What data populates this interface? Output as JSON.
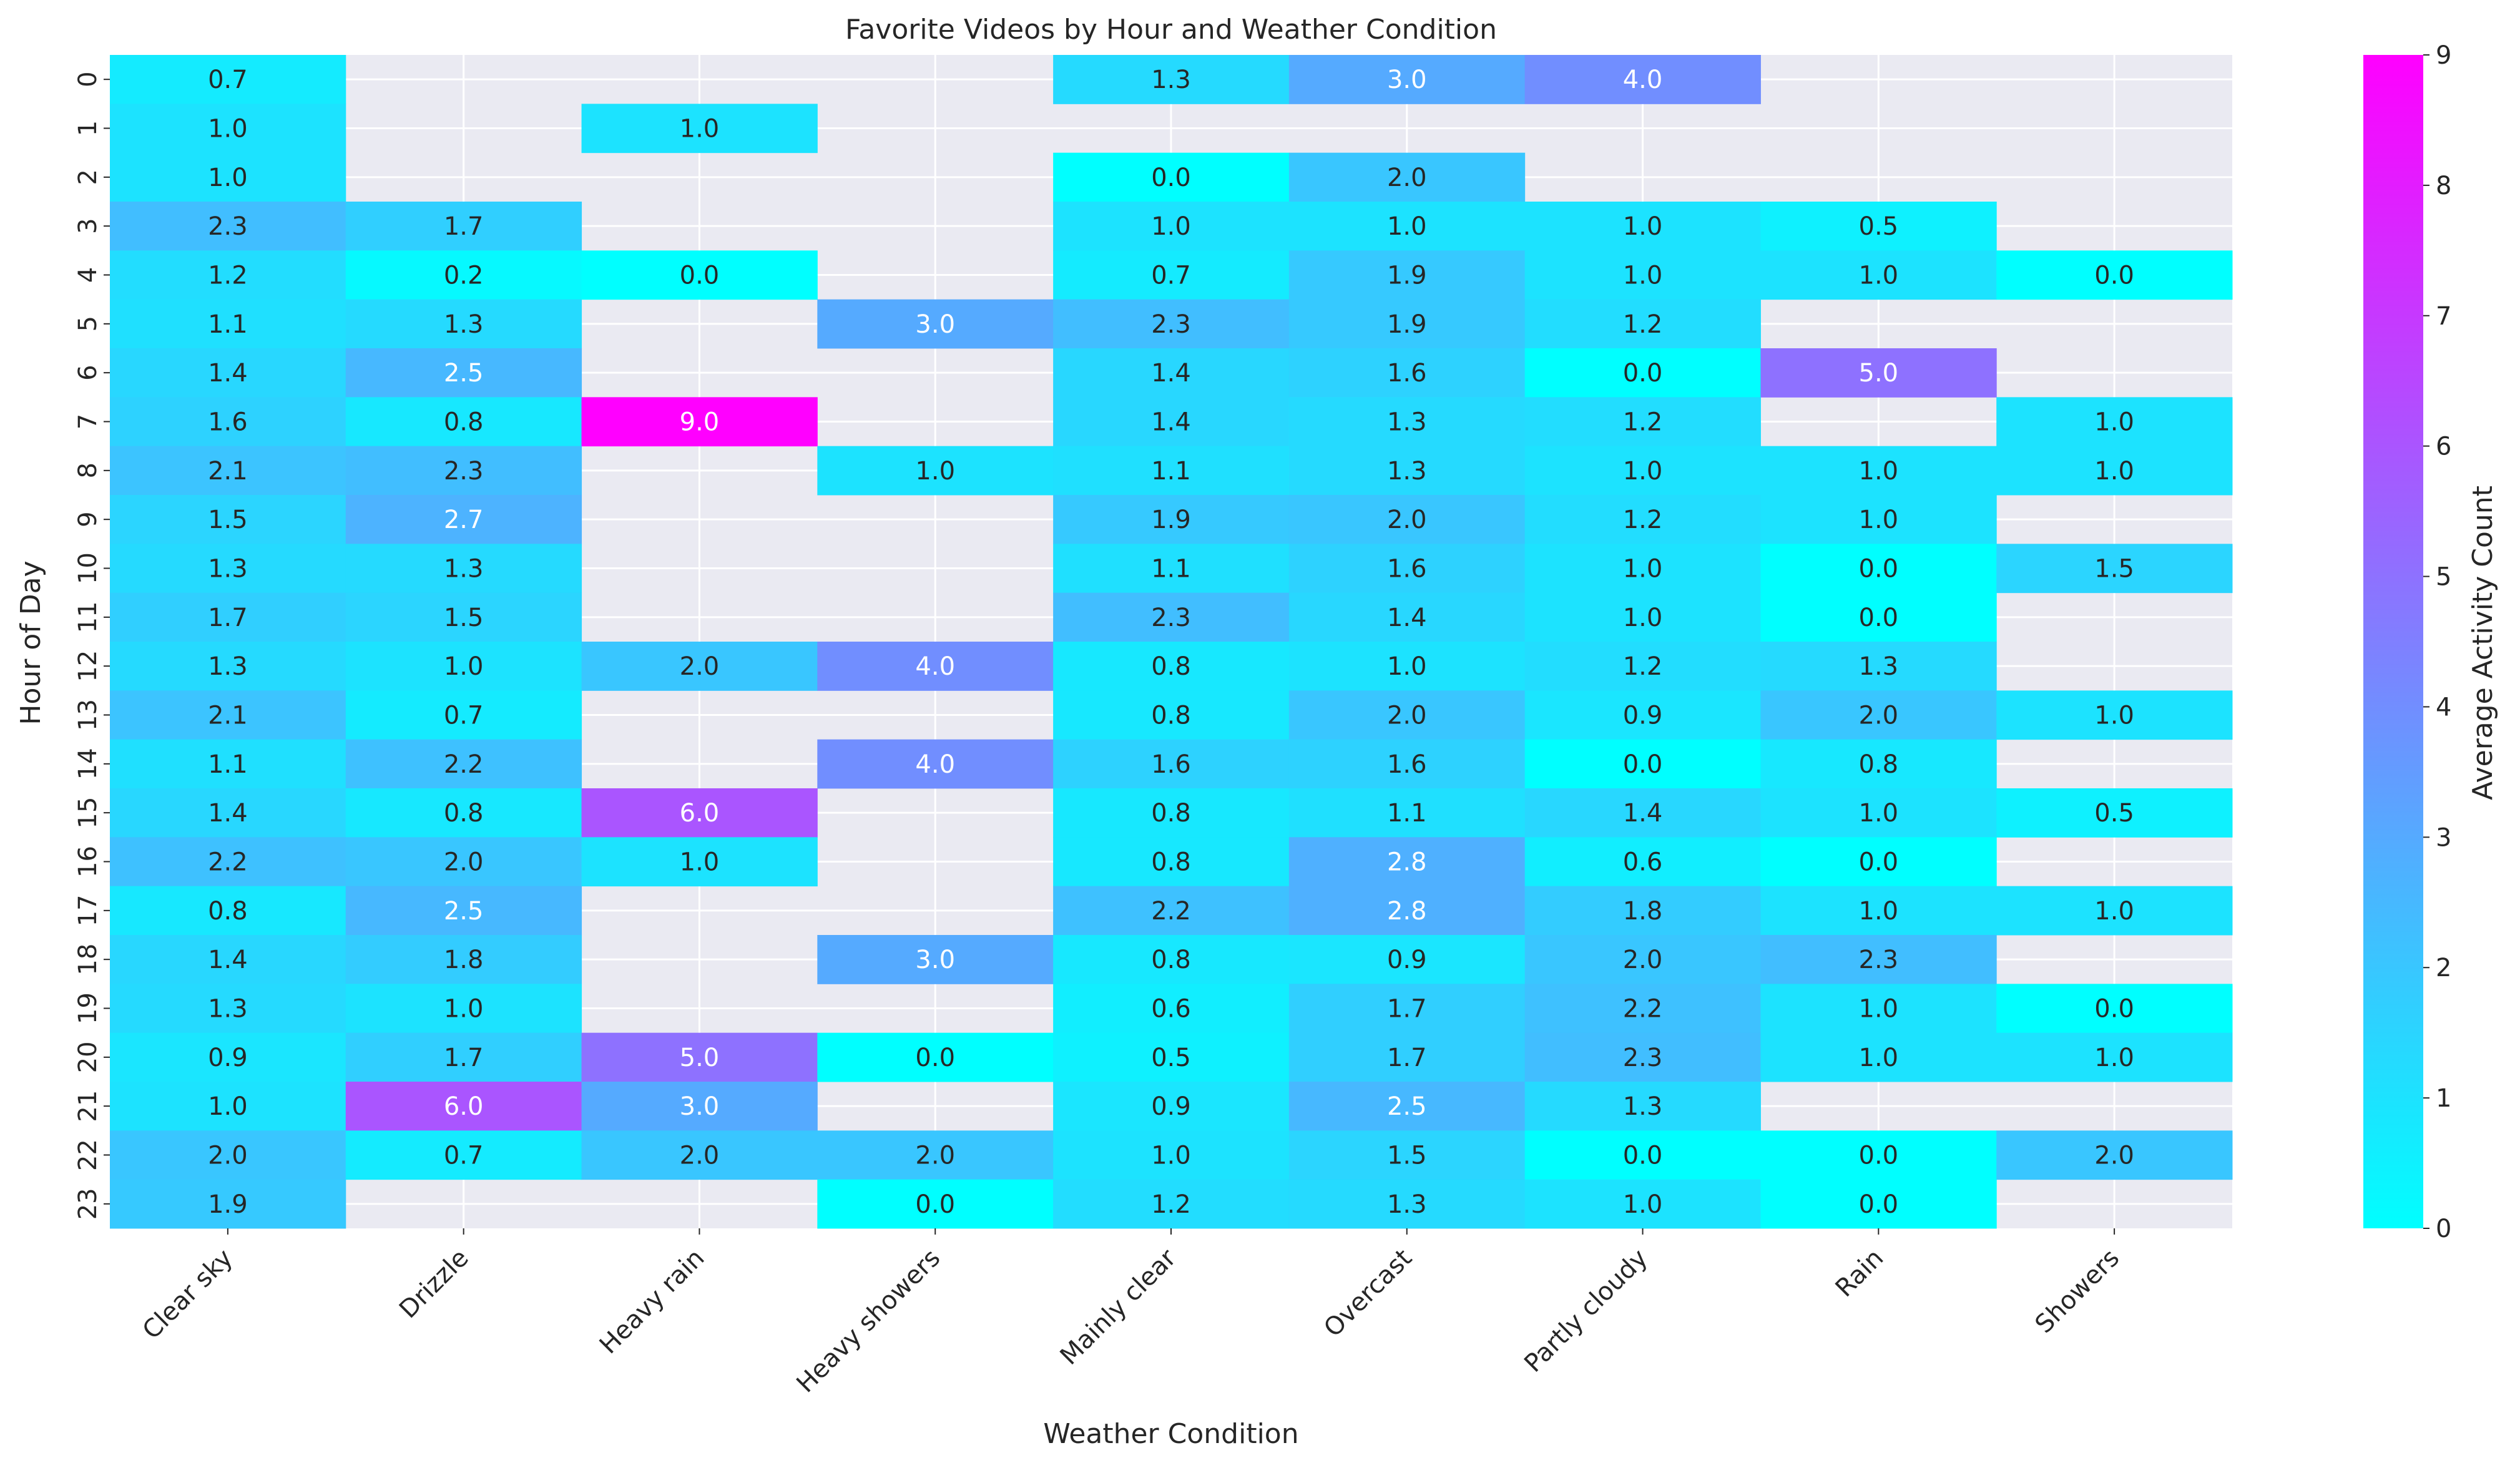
{
  "chart_data": {
    "type": "heatmap",
    "title": "Favorite Videos by Hour and Weather Condition",
    "xlabel": "Weather Condition",
    "ylabel": "Hour of Day",
    "colorbar_label": "Average Activity Count",
    "colormap": "cool",
    "colormap_low": "#00ffff",
    "colormap_high": "#ff00ff",
    "vmin": 0,
    "vmax": 9,
    "colorbar_ticks": [
      "0",
      "1",
      "2",
      "3",
      "4",
      "5",
      "6",
      "7",
      "8",
      "9"
    ],
    "background_color": "#eaeaf2",
    "grid": true,
    "x_categories": [
      "Clear sky",
      "Drizzle",
      "Heavy rain",
      "Heavy showers",
      "Mainly clear",
      "Overcast",
      "Partly cloudy",
      "Rain",
      "Showers"
    ],
    "y_categories": [
      "0",
      "1",
      "2",
      "3",
      "4",
      "5",
      "6",
      "7",
      "8",
      "9",
      "10",
      "11",
      "12",
      "13",
      "14",
      "15",
      "16",
      "17",
      "18",
      "19",
      "20",
      "21",
      "22",
      "23"
    ],
    "values": [
      [
        0.7,
        null,
        null,
        null,
        1.3,
        3.0,
        4.0,
        null,
        null
      ],
      [
        1.0,
        null,
        1.0,
        null,
        null,
        null,
        null,
        null,
        null
      ],
      [
        1.0,
        null,
        null,
        null,
        0.0,
        2.0,
        null,
        null,
        null
      ],
      [
        2.3,
        1.7,
        null,
        null,
        1.0,
        1.0,
        1.0,
        0.5,
        null
      ],
      [
        1.2,
        0.2,
        0.0,
        null,
        0.7,
        1.9,
        1.0,
        1.0,
        0.0
      ],
      [
        1.1,
        1.3,
        null,
        3.0,
        2.3,
        1.9,
        1.2,
        null,
        null
      ],
      [
        1.4,
        2.5,
        null,
        null,
        1.4,
        1.6,
        0.0,
        5.0,
        null
      ],
      [
        1.6,
        0.8,
        9.0,
        null,
        1.4,
        1.3,
        1.2,
        null,
        1.0
      ],
      [
        2.1,
        2.3,
        null,
        1.0,
        1.1,
        1.3,
        1.0,
        1.0,
        1.0
      ],
      [
        1.5,
        2.7,
        null,
        null,
        1.9,
        2.0,
        1.2,
        1.0,
        null
      ],
      [
        1.3,
        1.3,
        null,
        null,
        1.1,
        1.6,
        1.0,
        0.0,
        1.5
      ],
      [
        1.7,
        1.5,
        null,
        null,
        2.3,
        1.4,
        1.0,
        0.0,
        null
      ],
      [
        1.3,
        1.0,
        2.0,
        4.0,
        0.8,
        1.0,
        1.2,
        1.3,
        null
      ],
      [
        2.1,
        0.7,
        null,
        null,
        0.8,
        2.0,
        0.9,
        2.0,
        1.0
      ],
      [
        1.1,
        2.2,
        null,
        4.0,
        1.6,
        1.6,
        0.0,
        0.8,
        null
      ],
      [
        1.4,
        0.8,
        6.0,
        null,
        0.8,
        1.1,
        1.4,
        1.0,
        0.5
      ],
      [
        2.2,
        2.0,
        1.0,
        null,
        0.8,
        2.8,
        0.6,
        0.0,
        null
      ],
      [
        0.8,
        2.5,
        null,
        null,
        2.2,
        2.8,
        1.8,
        1.0,
        1.0
      ],
      [
        1.4,
        1.8,
        null,
        3.0,
        0.8,
        0.9,
        2.0,
        2.3,
        null
      ],
      [
        1.3,
        1.0,
        null,
        null,
        0.6,
        1.7,
        2.2,
        1.0,
        0.0
      ],
      [
        0.9,
        1.7,
        5.0,
        0.0,
        0.5,
        1.7,
        2.3,
        1.0,
        1.0
      ],
      [
        1.0,
        6.0,
        3.0,
        null,
        0.9,
        2.5,
        1.3,
        null,
        null
      ],
      [
        2.0,
        0.7,
        2.0,
        2.0,
        1.0,
        1.5,
        0.0,
        0.0,
        2.0
      ],
      [
        1.9,
        null,
        null,
        0.0,
        1.2,
        1.3,
        1.0,
        0.0,
        null
      ]
    ]
  }
}
